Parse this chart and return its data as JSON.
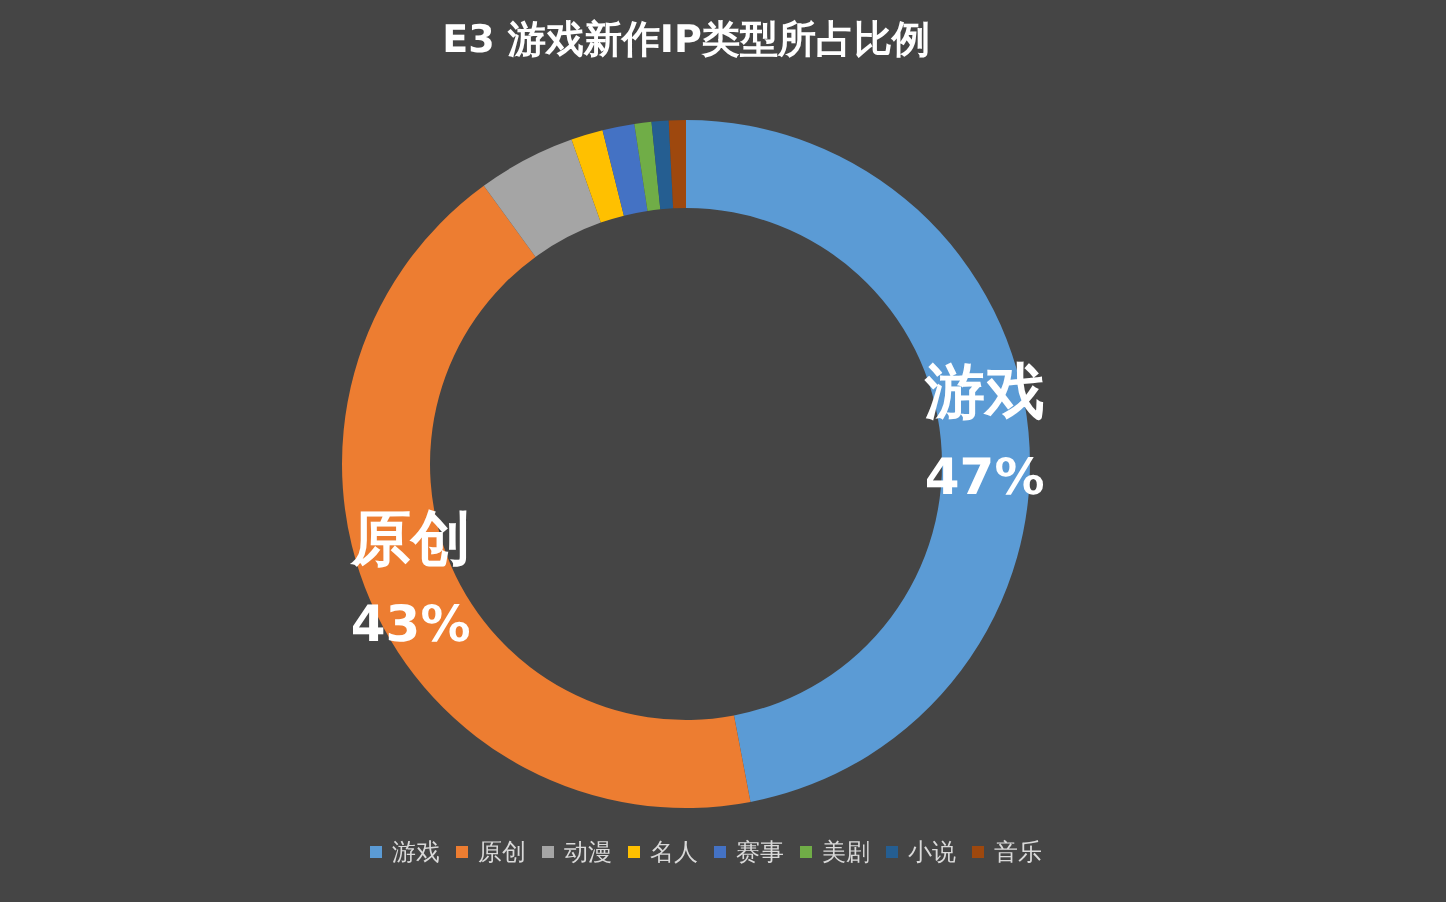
{
  "chart_data": {
    "type": "donut",
    "title": "E3 游戏新作IP类型所占比例",
    "categories": [
      "游戏",
      "原创",
      "动漫",
      "名人",
      "赛事",
      "美剧",
      "小说",
      "音乐"
    ],
    "values": [
      47,
      43,
      4.6,
      1.5,
      1.5,
      0.8,
      0.8,
      0.8
    ],
    "colors": [
      "#5b9bd5",
      "#ed7d31",
      "#a5a5a5",
      "#ffc000",
      "#4472c4",
      "#70ad47",
      "#255e91",
      "#9e480e"
    ],
    "value_labels": [
      "47%",
      "43%",
      null,
      null,
      null,
      null,
      null,
      null
    ],
    "legend": "bottom"
  }
}
